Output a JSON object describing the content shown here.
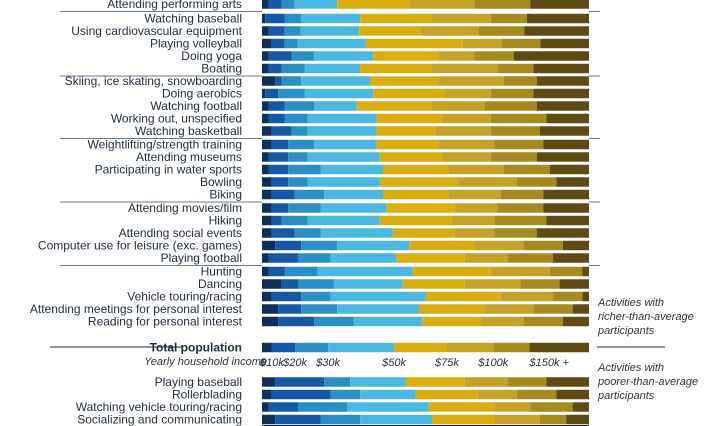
{
  "chart_data": {
    "type": "bar",
    "stacked": true,
    "normalized_to_percent": true,
    "income_brackets": [
      "$0-10k",
      "$10-20k",
      "$20-30k",
      "$30-50k",
      "$50-75k",
      "$75-100k",
      "$100-150k",
      "$150k+"
    ],
    "colors": [
      "#0e2f5a",
      "#1559a6",
      "#2b8ec4",
      "#4ab8e0",
      "#d9ad10",
      "#c6a127",
      "#a78a1f",
      "#5e4a12"
    ],
    "x_axis": {
      "title": "Yearly household income",
      "tick_labels": [
        "0",
        "$10k",
        "$20k",
        "$30k",
        "$50k",
        "$75k",
        "$100k",
        "$150k +"
      ]
    },
    "total_label": "Total population",
    "annotations": {
      "rich_note": [
        "Activities with",
        "richer-than-average",
        "participants"
      ],
      "poor_note": [
        "Activities with",
        "poorer-than-average",
        "participants"
      ]
    },
    "total": [
      3,
      7,
      10,
      20,
      16,
      14,
      11,
      18
    ],
    "top_groups": [
      [
        {
          "label": "Attending performing arts",
          "values": [
            2,
            4,
            4,
            13,
            22,
            20,
            17,
            18
          ]
        }
      ],
      [
        {
          "label": "Watching baseball",
          "values": [
            1,
            6,
            5,
            18,
            22,
            18,
            11,
            19
          ]
        },
        {
          "label": "Using cardiovascular equipment",
          "values": [
            2,
            5,
            5,
            18,
            19,
            18,
            14,
            20
          ]
        },
        {
          "label": "Playing volleyball",
          "values": [
            3,
            4,
            4,
            21,
            30,
            12,
            12,
            15
          ]
        },
        {
          "label": "Doing yoga",
          "values": [
            2,
            7,
            7,
            18,
            20,
            11,
            12,
            23
          ]
        },
        {
          "label": "Boating",
          "values": [
            2,
            4,
            7,
            17,
            22,
            20,
            11,
            17
          ]
        }
      ],
      [
        {
          "label": "Skiing, ice skating, snowboarding",
          "values": [
            4,
            2,
            6,
            21,
            21,
            20,
            10,
            16
          ]
        },
        {
          "label": "Doing aerobics",
          "values": [
            1,
            4,
            8,
            21,
            22,
            14,
            13,
            17
          ]
        },
        {
          "label": "Watching football",
          "values": [
            2,
            5,
            9,
            13,
            23,
            16,
            16,
            16
          ]
        },
        {
          "label": "Working out, unspecified",
          "values": [
            2,
            5,
            7,
            21,
            20,
            15,
            17,
            13
          ]
        },
        {
          "label": "Watching basketball",
          "values": [
            3,
            6,
            5,
            21,
            18,
            17,
            15,
            15
          ]
        }
      ],
      [
        {
          "label": "Weightlifting/strength training",
          "values": [
            3,
            5,
            8,
            19,
            19,
            17,
            15,
            14
          ]
        },
        {
          "label": "Attending museums",
          "values": [
            2,
            6,
            6,
            22,
            19,
            15,
            14,
            16
          ]
        },
        {
          "label": "Participating in water sports",
          "values": [
            2,
            6,
            10,
            19,
            20,
            17,
            14,
            12
          ]
        },
        {
          "label": "Bowling",
          "values": [
            3,
            5,
            6,
            22,
            24,
            18,
            12,
            10
          ]
        },
        {
          "label": "Biking",
          "values": [
            3,
            7,
            9,
            18,
            20,
            16,
            13,
            14
          ]
        }
      ],
      [
        {
          "label": "Attending movies/film",
          "values": [
            3,
            5,
            10,
            20,
            21,
            13,
            14,
            14
          ]
        },
        {
          "label": "Hiking",
          "values": [
            3,
            3,
            8,
            22,
            22,
            13,
            16,
            13
          ]
        },
        {
          "label": "Attending social events",
          "values": [
            3,
            7,
            8,
            22,
            19,
            12,
            13,
            16
          ]
        },
        {
          "label": "Computer use for leisure (exc. games)",
          "values": [
            4,
            8,
            11,
            22,
            20,
            15,
            12,
            8
          ]
        },
        {
          "label": "Playing football",
          "values": [
            2,
            9,
            10,
            20,
            21,
            13,
            14,
            11
          ]
        }
      ],
      [
        {
          "label": "Hunting",
          "values": [
            2,
            5,
            10,
            29,
            24,
            18,
            10,
            2
          ]
        },
        {
          "label": "Dancing",
          "values": [
            6,
            5,
            11,
            21,
            19,
            17,
            12,
            9
          ]
        },
        {
          "label": "Vehicle touring/racing",
          "values": [
            3,
            9,
            9,
            29,
            23,
            16,
            9,
            2
          ]
        },
        {
          "label": "Attending meetings for personal interest",
          "values": [
            5,
            7,
            11,
            25,
            20,
            15,
            12,
            5
          ]
        },
        {
          "label": "Reading for personal interest",
          "values": [
            5,
            11,
            12,
            21,
            18,
            13,
            12,
            8
          ]
        }
      ]
    ],
    "bottom_group": [
      {
        "label": "Playing baseball",
        "values": [
          4,
          15,
          8,
          17,
          18,
          13,
          12,
          13
        ]
      },
      {
        "label": "Rollerblading",
        "values": [
          3,
          18,
          9,
          17,
          19,
          12,
          12,
          10
        ]
      },
      {
        "label": "Watching vehicle touring/racing",
        "values": [
          2,
          9,
          15,
          25,
          20,
          11,
          13,
          5
        ]
      },
      {
        "label": "Socializing and communicating",
        "values": [
          4,
          14,
          12,
          22,
          19,
          14,
          8,
          7
        ]
      }
    ]
  }
}
